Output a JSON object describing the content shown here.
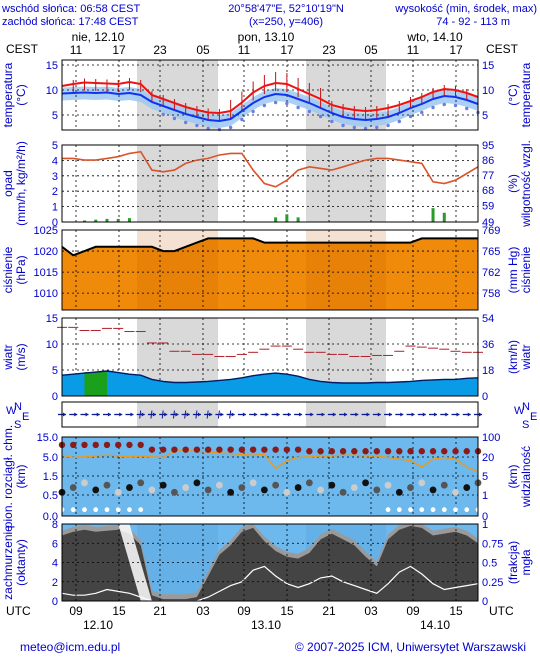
{
  "header": {
    "sunrise": "wschód słońca: 06:58 CEST",
    "sunset": "zachód słońca: 17:48 CEST",
    "coords": "20°58'47\"E, 52°10'19\"N",
    "grid": "(x=250, y=406)",
    "altitude_label": "wysokość (min, środek, max)",
    "altitude_values": "74 - 92 - 113 m"
  },
  "timezone_label": "CEST",
  "utc_label": "UTC",
  "days_top": [
    "nie, 12.10",
    "pon, 13.10",
    "wto, 14.10"
  ],
  "days_bottom": [
    "12.10",
    "13.10",
    "14.10"
  ],
  "hours_top": [
    "11",
    "17",
    "23",
    "05",
    "11",
    "17",
    "23",
    "05",
    "11",
    "17"
  ],
  "hours_bottom": [
    "09",
    "15",
    "21",
    "03",
    "09",
    "15",
    "21",
    "03",
    "09",
    "15"
  ],
  "panels": {
    "temperature": {
      "left_label": "temperatura",
      "left_unit": "(°C)",
      "right_label": "temperatura",
      "right_unit": "(°C)",
      "yticks": [
        "15",
        "10",
        "5"
      ],
      "right_ticks": [
        "15",
        "10",
        "5"
      ]
    },
    "precip": {
      "left_label": "opad",
      "left_unit": "(mm/h, kg/m²/h)",
      "right_label": "wilgotność wzgl.",
      "right_unit": "(%)",
      "yticks": [
        "5",
        "4",
        "3",
        "2",
        "1",
        "0"
      ],
      "right_ticks": [
        "95",
        "86",
        "77",
        "68",
        "59",
        "49"
      ]
    },
    "pressure": {
      "left_label": "ciśnienie",
      "left_unit": "(hPa)",
      "right_label": "ciśnienie",
      "right_unit": "(mm Hg)",
      "yticks": [
        "1025",
        "1020",
        "1015",
        "1010"
      ],
      "right_ticks": [
        "769",
        "765",
        "762",
        "758"
      ]
    },
    "wind": {
      "left_label": "wiatr",
      "left_unit": "(m/s)",
      "right_label": "wiatr",
      "right_unit": "(km/h)",
      "yticks": [
        "15",
        "10",
        "5",
        "0"
      ],
      "right_ticks": [
        "54",
        "36",
        "18",
        "0"
      ]
    },
    "direction": {
      "compass_n": "N",
      "compass_s": "S",
      "compass_w": "W",
      "compass_e": "E"
    },
    "cloudbase": {
      "left_label": "pion. rozciągł. chm.",
      "left_unit": "(km)",
      "right_label": "widzialność",
      "right_unit": "(km)",
      "yticks": [
        "15.0",
        "5.0",
        "1.5",
        "0.5",
        "0.0"
      ],
      "right_ticks": [
        "100",
        "20",
        "5",
        "1",
        "0"
      ]
    },
    "clouds": {
      "left_label": "zachmurzenie",
      "left_unit": "(oktanty)",
      "right_label": "mgła",
      "right_unit": "(frakcja)",
      "yticks": [
        "8",
        "6",
        "4",
        "2",
        "0"
      ],
      "right_ticks": [
        "1",
        "0.75",
        "0.5",
        "0.25",
        "0"
      ]
    }
  },
  "colors": {
    "temp_line": "#ee1111",
    "dew_line": "#1133ee",
    "axis_text": "#0000cc",
    "night_shade": "#d9d9d9",
    "pressure_fill": "#f08a0a",
    "wind_fill": "#0a9be6",
    "cloud_bg": "#6db8ec",
    "humidity_line": "#d9542c"
  },
  "chart_data": [
    {
      "type": "line",
      "ylim": [
        0,
        15
      ],
      "series": [
        {
          "values": [
            10.8,
            11.2,
            11.5,
            11.4,
            11.3,
            11.2,
            11.6,
            11.2,
            9.0,
            8.2,
            7.4,
            6.6,
            6.0,
            5.5,
            5.4,
            5.8,
            7.5,
            9.5,
            10.8,
            11.4,
            11.2,
            10.2,
            9.2,
            8.2,
            7.0,
            6.4,
            6.0,
            5.8,
            6.0,
            6.4,
            7.0,
            7.8,
            8.6,
            9.6,
            10.2,
            10.0,
            9.4,
            8.6
          ]
        },
        {
          "values": [
            9.3,
            9.4,
            9.5,
            9.4,
            9.5,
            9.2,
            9.4,
            9.0,
            7.6,
            6.8,
            6.0,
            5.2,
            4.6,
            4.0,
            3.8,
            4.2,
            5.8,
            7.4,
            8.6,
            9.2,
            9.0,
            8.2,
            7.4,
            6.4,
            5.4,
            4.6,
            4.2,
            4.0,
            4.2,
            4.6,
            5.4,
            6.4,
            7.2,
            8.2,
            8.8,
            8.6,
            8.0,
            7.2
          ]
        }
      ]
    },
    {
      "type": "line",
      "ylim": [
        49,
        95
      ],
      "series": [
        {
          "values": [
            87,
            87,
            86,
            86,
            87,
            88,
            90,
            91,
            80,
            79,
            80,
            84,
            86,
            87,
            89,
            90,
            90,
            80,
            72,
            70,
            74,
            80,
            82,
            81,
            80,
            82,
            84,
            86,
            87,
            87,
            86,
            85,
            84,
            73,
            72,
            74,
            78,
            82
          ]
        }
      ]
    },
    {
      "type": "area",
      "ylim": [
        1006,
        1025
      ],
      "series": [
        {
          "values": [
            1021,
            1019,
            1020,
            1021,
            1021,
            1021,
            1021,
            1021,
            1021,
            1020,
            1020,
            1021,
            1022,
            1023,
            1023,
            1023,
            1023,
            1023,
            1022,
            1022,
            1022,
            1022,
            1022,
            1022,
            1022,
            1022,
            1022,
            1022,
            1022,
            1022,
            1022,
            1022,
            1023,
            1023,
            1023,
            1023,
            1023,
            1023
          ]
        }
      ]
    },
    {
      "type": "area",
      "ylim": [
        0,
        15
      ],
      "series": [
        {
          "values": [
            4.0,
            4.2,
            4.4,
            4.6,
            4.8,
            4.5,
            4.2,
            4.0,
            3.2,
            2.8,
            2.6,
            2.6,
            2.7,
            2.8,
            3.0,
            3.2,
            3.5,
            3.9,
            4.2,
            4.4,
            4.2,
            3.8,
            3.2,
            2.8,
            2.6,
            2.5,
            2.5,
            2.5,
            2.6,
            2.6,
            2.7,
            2.8,
            3.0,
            3.1,
            3.2,
            3.2,
            3.4,
            3.5
          ]
        },
        {
          "values": [
            13.2,
            13.2,
            12.6,
            12.6,
            13.0,
            13.0,
            12.4,
            12.4,
            10.2,
            10.2,
            8.6,
            8.6,
            8.0,
            8.0,
            7.6,
            7.6,
            8.0,
            8.4,
            9.0,
            9.6,
            9.6,
            9.0,
            8.4,
            8.4,
            8.0,
            8.0,
            7.6,
            7.6,
            7.8,
            7.8,
            8.6,
            9.6,
            9.4,
            9.2,
            9.0,
            8.6,
            8.4,
            8.4
          ]
        }
      ]
    },
    {
      "type": "area",
      "ylim": [
        0,
        8
      ],
      "series": [
        {
          "values": [
            6.8,
            7.2,
            7.4,
            7.2,
            7.3,
            7.4,
            7.0,
            5.8,
            0.6,
            0.2,
            0.2,
            0.2,
            0.4,
            2.6,
            4.8,
            5.8,
            7.2,
            7.6,
            6.2,
            5.2,
            4.6,
            4.4,
            5.0,
            6.4,
            7.0,
            6.4,
            5.8,
            4.6,
            3.6,
            6.4,
            7.4,
            7.8,
            7.6,
            6.8,
            7.0,
            7.2,
            6.8,
            6.0
          ]
        },
        {
          "values": [
            0.8,
            0.6,
            0.6,
            0.8,
            1.2,
            1.0,
            0.8,
            0.4,
            0.0,
            0.0,
            0.0,
            0.0,
            0.0,
            0.4,
            1.0,
            1.6,
            2.0,
            3.2,
            3.6,
            2.6,
            1.8,
            1.4,
            1.8,
            2.4,
            2.6,
            2.0,
            1.6,
            1.2,
            0.8,
            1.8,
            3.0,
            3.6,
            2.8,
            1.8,
            1.2,
            1.4,
            1.6,
            1.8
          ]
        }
      ]
    }
  ]
}
